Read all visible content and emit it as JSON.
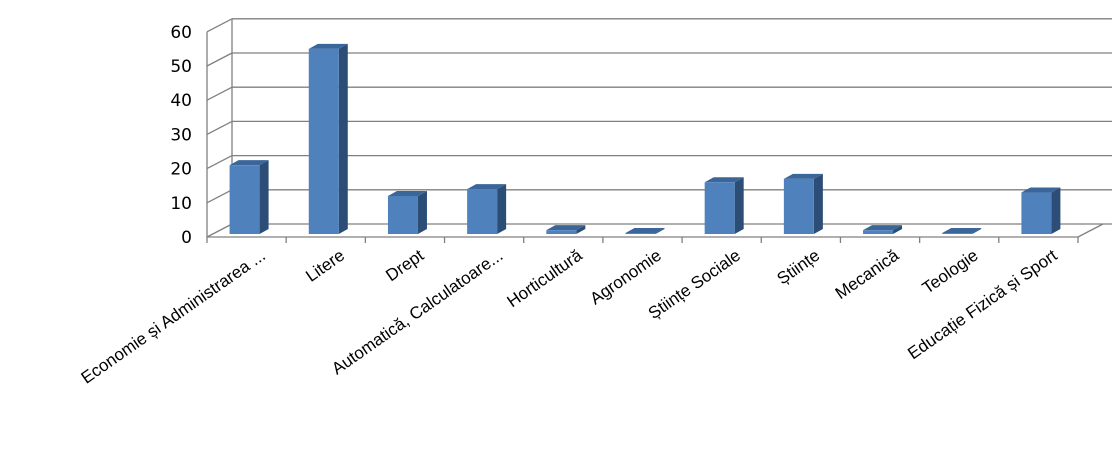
{
  "chart_data": {
    "type": "bar",
    "title": "",
    "xlabel": "",
    "ylabel": "",
    "ylim": [
      0,
      60
    ],
    "yticks": [
      0,
      10,
      20,
      30,
      40,
      50,
      60
    ],
    "grid": true,
    "style": "3d-clustered-column",
    "categories": [
      "Economie și Administrarea ...",
      "Litere",
      "Drept",
      "Automatică, Calculatoare...",
      "Horticultură",
      "Agronomie",
      "Științe Sociale",
      "Științe",
      "Mecanică",
      "Teologie",
      "Educație Fizică și Sport"
    ],
    "values": [
      21,
      55,
      12,
      14,
      2,
      1,
      16,
      17,
      2,
      1,
      13
    ],
    "colors": {
      "bar_front": "#4F81BD",
      "bar_side": "#2C4D75",
      "bar_top": "#3B669A",
      "grid": "#808080"
    }
  }
}
